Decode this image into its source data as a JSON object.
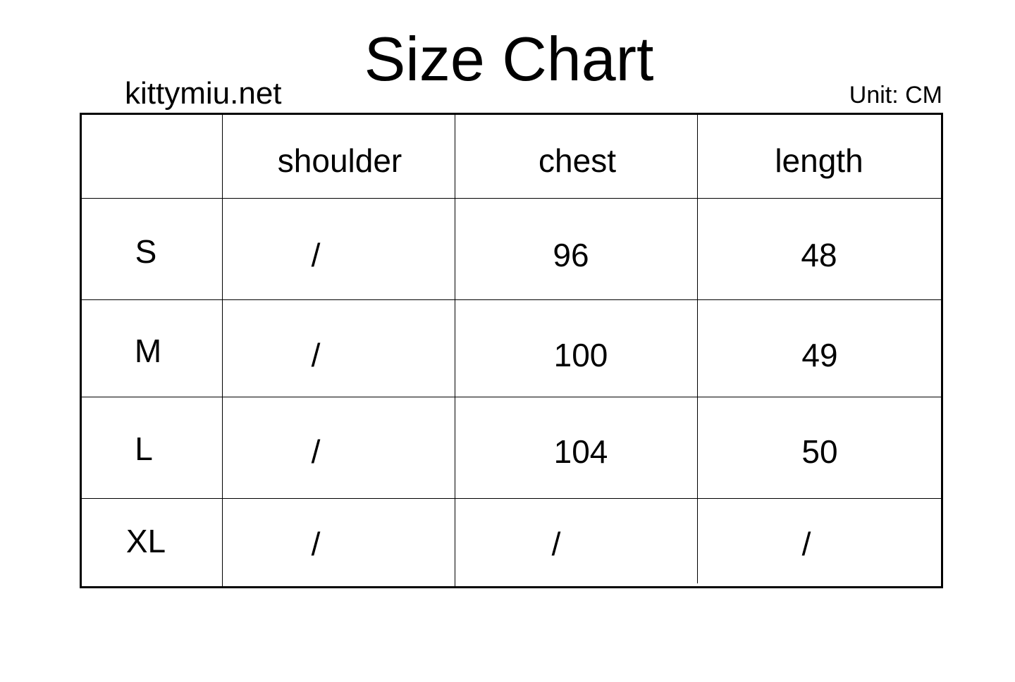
{
  "title": "Size Chart",
  "brand": "kittymiu.net",
  "unit": "Unit: CM",
  "table": {
    "headers": [
      "",
      "shoulder",
      "chest",
      "length"
    ],
    "rows": [
      {
        "size": "S",
        "shoulder": "/",
        "chest": "96",
        "length": "48"
      },
      {
        "size": "M",
        "shoulder": "/",
        "chest": "100",
        "length": "49"
      },
      {
        "size": "L",
        "shoulder": "/",
        "chest": "104",
        "length": "50"
      },
      {
        "size": "XL",
        "shoulder": "/",
        "chest": "/",
        "length": "/"
      }
    ]
  }
}
